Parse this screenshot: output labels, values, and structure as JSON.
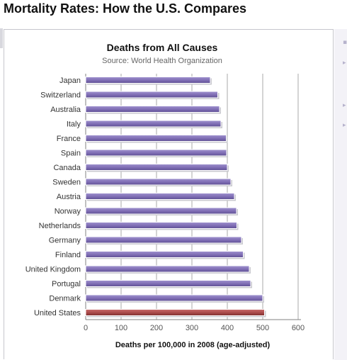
{
  "page": {
    "title": "Mortality Rates: How the U.S. Compares"
  },
  "side_panel": {
    "markers": [
      "▪",
      "▸",
      "▸",
      "▸"
    ]
  },
  "chart_data": {
    "type": "bar",
    "orientation": "horizontal",
    "title": "Deaths from All Causes",
    "subtitle": "Source: World Health Organization",
    "xlabel": "Deaths per 100,000 in 2008 (age-adjusted)",
    "ylabel": "",
    "xlim": [
      0,
      600
    ],
    "xticks": [
      0,
      100,
      200,
      300,
      400,
      500,
      600
    ],
    "grid": true,
    "categories": [
      "Japan",
      "Switzerland",
      "Australia",
      "Italy",
      "France",
      "Spain",
      "Canada",
      "Sweden",
      "Austria",
      "Norway",
      "Netherlands",
      "Germany",
      "Finland",
      "United Kingdom",
      "Portugal",
      "Denmark",
      "United States"
    ],
    "values": [
      352,
      373,
      378,
      382,
      397,
      398,
      400,
      410,
      420,
      426,
      427,
      440,
      445,
      462,
      466,
      500,
      505
    ],
    "colors": {
      "default": "#7f6db4",
      "default_light": "#9f92cf",
      "default_dark": "#5e4f93",
      "highlight": "#a84848",
      "highlight_light": "#c96b6b",
      "highlight_dark": "#7d2f2f",
      "grid": "#a8a8a8",
      "axis": "#808080"
    },
    "highlight_category": "United States"
  }
}
